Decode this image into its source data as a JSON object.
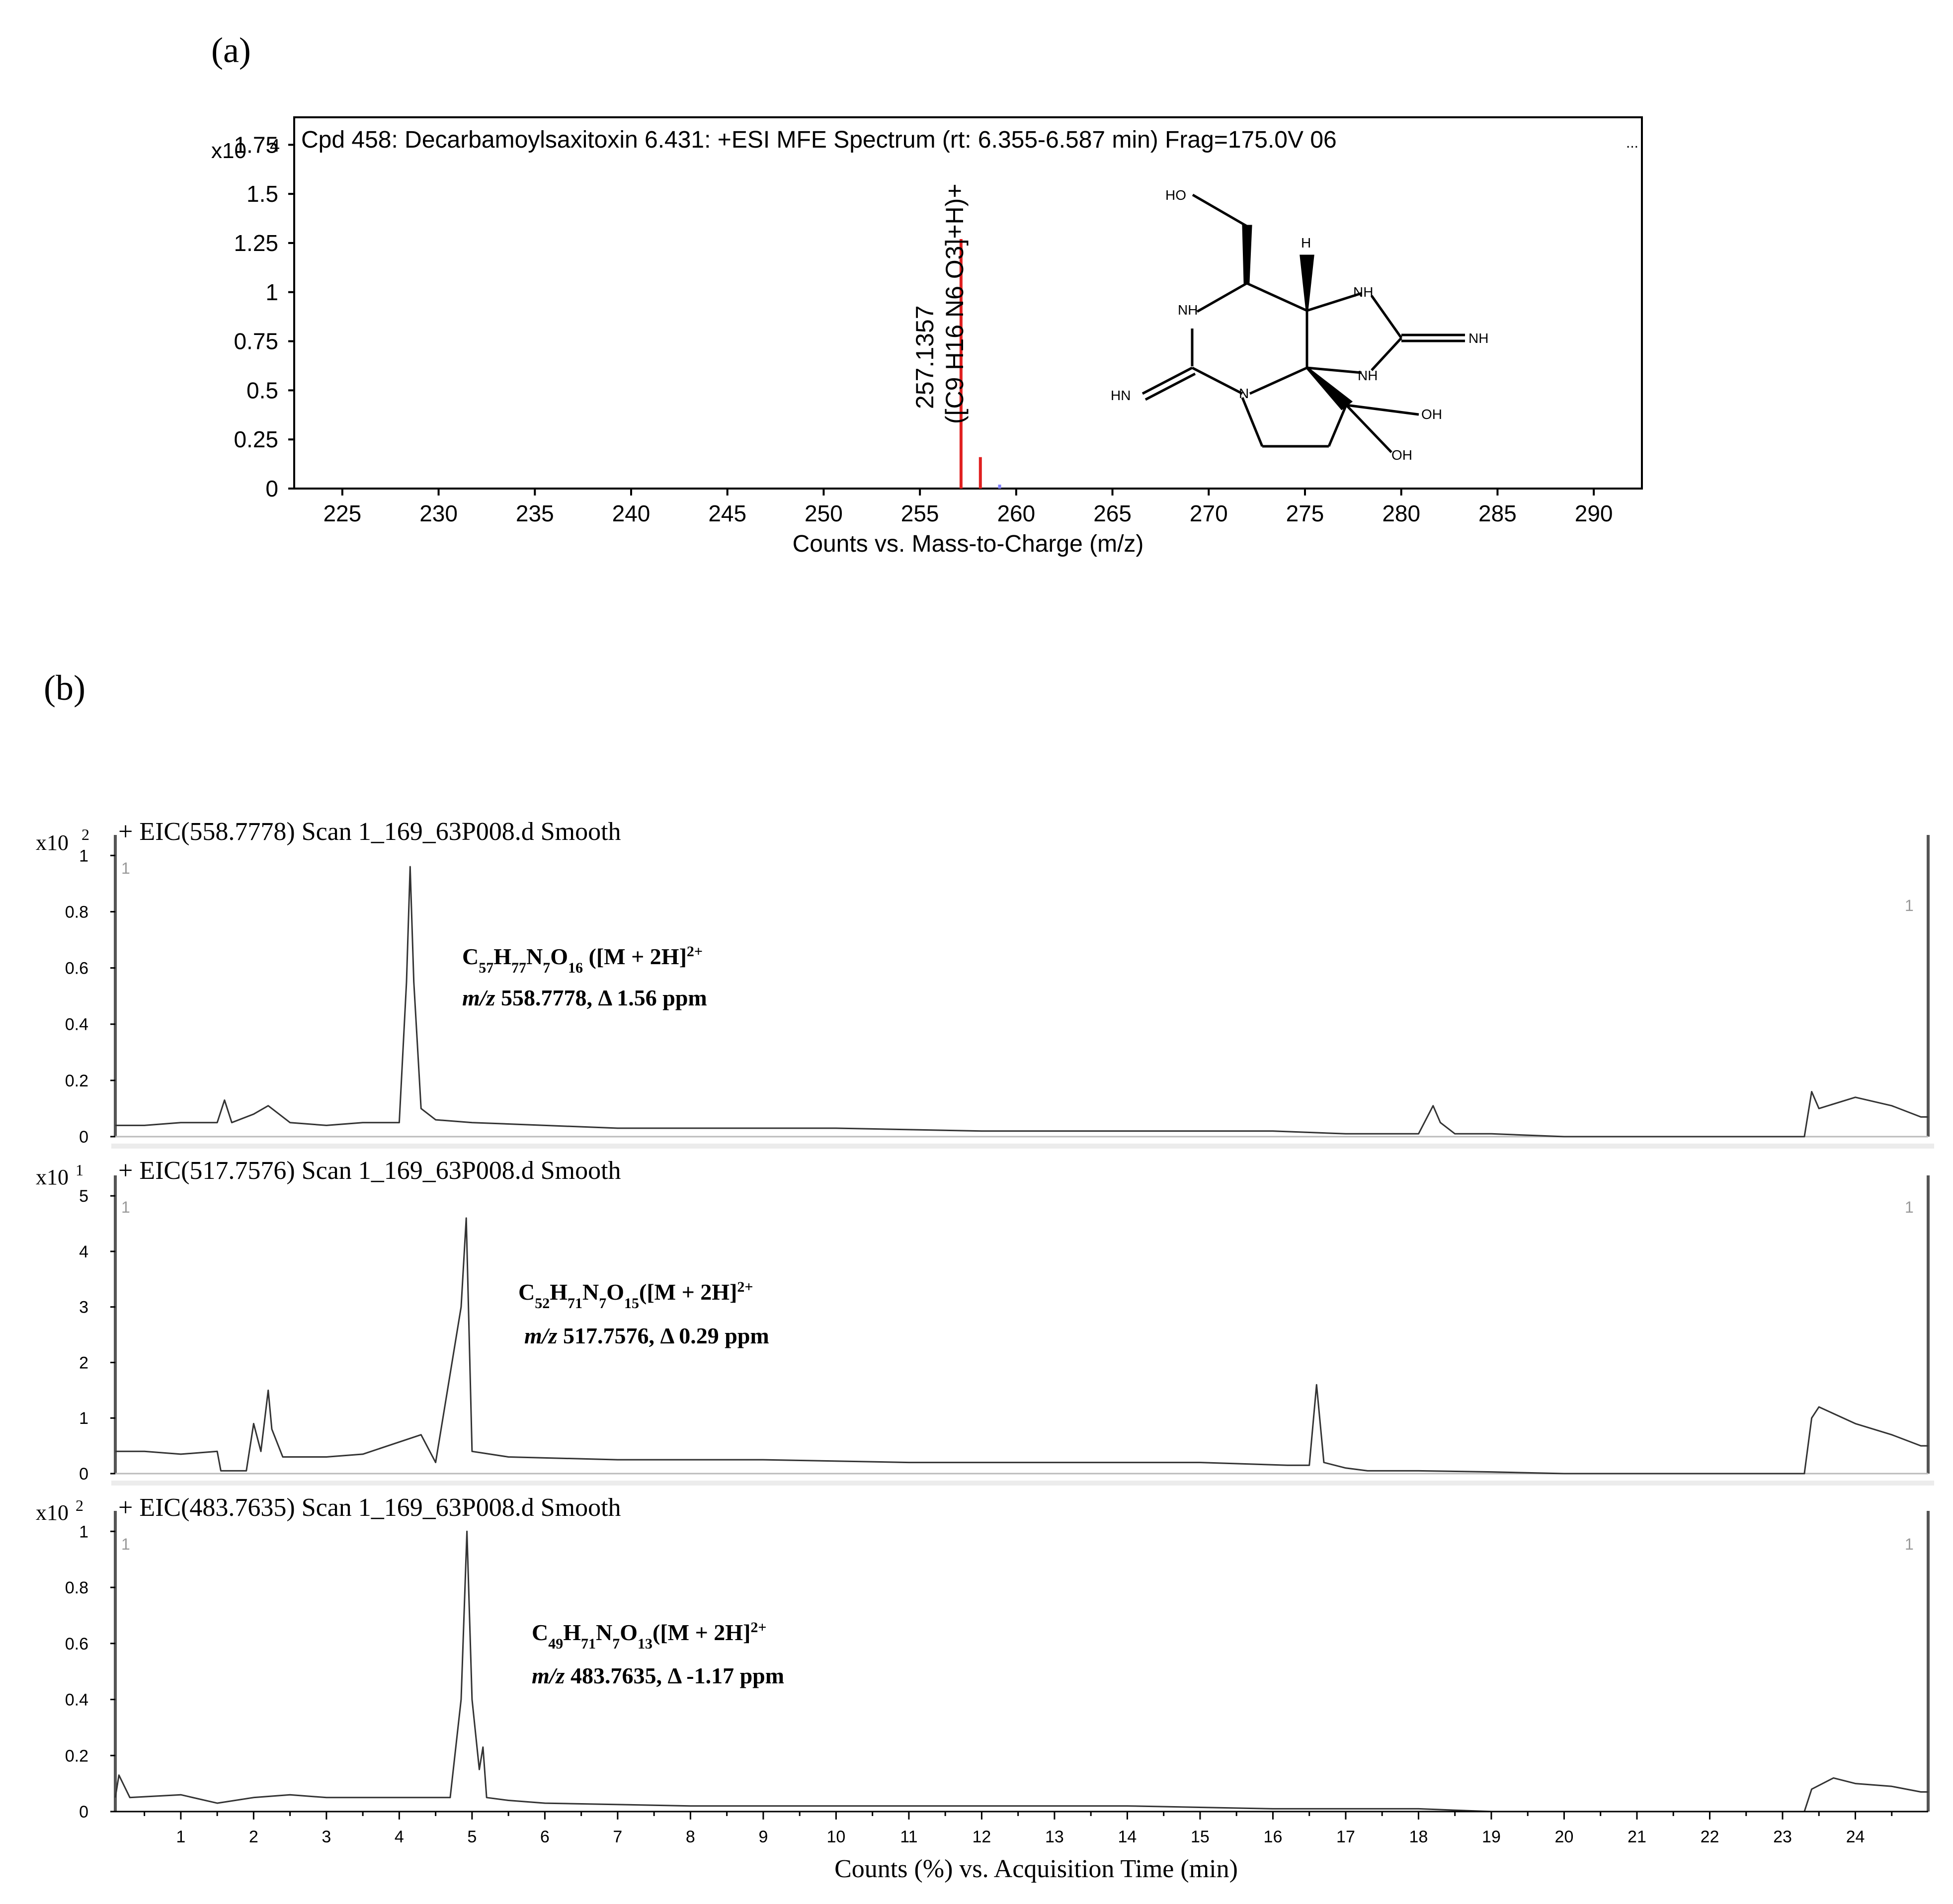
{
  "panel_a": {
    "label": "(a)",
    "header": "Cpd 458: Decarbamoylsaxitoxin 6.431: +ESI MFE Spectrum (rt: 6.355-6.587 min) Frag=175.0V 06",
    "ellipsis": "...",
    "y_multiplier": "x10",
    "y_exponent": "4",
    "xlabel": "Counts vs. Mass-to-Charge (m/z)",
    "peak_label_mz": "257.1357",
    "peak_label_formula": "([C9 H16 N6 O3]+H)+",
    "structure_labels": {
      "ho": "HO",
      "h": "H",
      "nh_left": "NH",
      "nh_top": "NH",
      "nh_imine": "NH",
      "nh_bottom": "NH",
      "hn": "HN",
      "n": "N",
      "oh1": "OH",
      "oh2": "OH"
    }
  },
  "panel_b": {
    "label": "(b)",
    "xlabel": "Counts (%) vs. Acquisition Time (min)",
    "tracks": [
      {
        "title": "+ EIC(558.7778) Scan 1_169_63P008.d  Smooth",
        "multiplier": "x10",
        "exponent": "2",
        "marker_left": "1",
        "marker_right": "1",
        "formula": {
          "c": "C",
          "cs": "57",
          "h": "H",
          "hs": "77",
          "n": "N",
          "ns": "7",
          "o": "O",
          "os": "16",
          "tail": " ([M + 2H]",
          "charge": "2+"
        },
        "mz": {
          "prefix": "m/z",
          "text": " 558.7778, Δ 1.56 ppm"
        }
      },
      {
        "title": "+ EIC(517.7576) Scan 1_169_63P008.d  Smooth",
        "multiplier": "x10",
        "exponent": "1",
        "marker_left": "1",
        "marker_right": "1",
        "formula": {
          "c": "C",
          "cs": "52",
          "h": "H",
          "hs": "71",
          "n": "N",
          "ns": "7",
          "o": "O",
          "os": "15",
          "tail": "([M + 2H]",
          "charge": "2+"
        },
        "mz": {
          "prefix": "m/z",
          "text": " 517.7576, Δ 0.29 ppm"
        }
      },
      {
        "title": "+ EIC(483.7635) Scan 1_169_63P008.d  Smooth",
        "multiplier": "x10",
        "exponent": "2",
        "marker_left": "1",
        "marker_right": "1",
        "formula": {
          "c": "C",
          "cs": "49",
          "h": "H",
          "hs": "71",
          "n": "N",
          "ns": "7",
          "o": "O",
          "os": "13",
          "tail": "([M + 2H]",
          "charge": "2+"
        },
        "mz": {
          "prefix": "m/z",
          "text": " 483.7635, Δ -1.17 ppm"
        }
      }
    ]
  },
  "chart_data": [
    {
      "type": "bar",
      "title": "Cpd 458: Decarbamoylsaxitoxin 6.431: +ESI MFE Spectrum (rt: 6.355-6.587 min) Frag=175.0V 06",
      "xlabel": "Counts vs. Mass-to-Charge (m/z)",
      "ylabel": "",
      "xlim": [
        222.5,
        292.5
      ],
      "ylim": [
        0,
        1.89
      ],
      "x_ticks": [
        225,
        230,
        235,
        240,
        245,
        250,
        255,
        260,
        265,
        270,
        275,
        280,
        285,
        290
      ],
      "y_ticks": [
        0,
        0.25,
        0.5,
        0.75,
        1,
        1.25,
        1.5,
        1.75
      ],
      "y_tick_labels": [
        "0",
        "0.25",
        "0.5",
        "0.75",
        "1",
        "1.25",
        "1.5",
        "1.75"
      ],
      "peaks": [
        {
          "mz": 257.1357,
          "intensity": 1.27,
          "color": "#e02020"
        },
        {
          "mz": 258.14,
          "intensity": 0.16,
          "color": "#e02020"
        },
        {
          "mz": 259.14,
          "intensity": 0.02,
          "color": "#8080ff"
        }
      ]
    },
    {
      "type": "line",
      "title": "+ EIC(558.7778) Scan 1_169_63P008.d  Smooth",
      "xlabel": "Counts (%) vs. Acquisition Time (min)",
      "xlim": [
        0.1,
        25.0
      ],
      "ylim": [
        0,
        1.02
      ],
      "y_ticks": [
        0,
        0.2,
        0.4,
        0.6,
        0.8,
        1
      ],
      "y_tick_labels": [
        "0",
        "0.2",
        "0.4",
        "0.6",
        "0.8",
        "1"
      ],
      "x": [
        0.1,
        0.5,
        1.0,
        1.5,
        1.6,
        1.7,
        2.0,
        2.2,
        2.5,
        3.0,
        3.5,
        4.0,
        4.1,
        4.15,
        4.2,
        4.3,
        4.5,
        5.0,
        6.0,
        7.0,
        8.0,
        9.0,
        10.0,
        12.0,
        14.0,
        16.0,
        17.0,
        18.0,
        18.2,
        18.3,
        18.5,
        19.0,
        20.0,
        23.3,
        23.4,
        23.5,
        24.0,
        24.5,
        24.9,
        25.0
      ],
      "y": [
        0.04,
        0.04,
        0.05,
        0.05,
        0.13,
        0.05,
        0.08,
        0.11,
        0.05,
        0.04,
        0.05,
        0.05,
        0.55,
        0.96,
        0.55,
        0.1,
        0.06,
        0.05,
        0.04,
        0.03,
        0.03,
        0.03,
        0.03,
        0.02,
        0.02,
        0.02,
        0.01,
        0.01,
        0.11,
        0.05,
        0.01,
        0.01,
        0.0,
        0.0,
        0.16,
        0.1,
        0.14,
        0.11,
        0.07,
        0.07
      ]
    },
    {
      "type": "line",
      "title": "+ EIC(517.7576) Scan 1_169_63P008.d  Smooth",
      "xlabel": "Counts (%) vs. Acquisition Time (min)",
      "xlim": [
        0.1,
        25.0
      ],
      "ylim": [
        0,
        5.1
      ],
      "y_ticks": [
        0,
        1,
        2,
        3,
        4,
        5
      ],
      "y_tick_labels": [
        "0",
        "1",
        "2",
        "3",
        "4",
        "5"
      ],
      "x": [
        0.1,
        0.5,
        1.0,
        1.5,
        1.55,
        1.9,
        2.0,
        2.1,
        2.2,
        2.25,
        2.4,
        3.0,
        3.5,
        4.3,
        4.5,
        4.85,
        4.92,
        5.0,
        5.5,
        7.0,
        9.0,
        11.0,
        13.0,
        15.0,
        16.2,
        16.5,
        16.6,
        16.7,
        17.0,
        17.3,
        18.0,
        19.0,
        20.0,
        23.3,
        23.4,
        23.5,
        24.0,
        24.5,
        24.9,
        25.0
      ],
      "y": [
        0.4,
        0.4,
        0.35,
        0.4,
        0.05,
        0.05,
        0.9,
        0.4,
        1.5,
        0.8,
        0.3,
        0.3,
        0.35,
        0.7,
        0.2,
        3.0,
        4.6,
        0.4,
        0.3,
        0.25,
        0.25,
        0.2,
        0.2,
        0.2,
        0.15,
        0.15,
        1.6,
        0.2,
        0.1,
        0.05,
        0.05,
        0.03,
        0.0,
        0.0,
        1.0,
        1.2,
        0.9,
        0.7,
        0.5,
        0.5
      ]
    },
    {
      "type": "line",
      "title": "+ EIC(483.7635) Scan 1_169_63P008.d  Smooth",
      "xlabel": "Counts (%) vs. Acquisition Time (min)",
      "xlim": [
        0.1,
        25.0
      ],
      "ylim": [
        0,
        1.02
      ],
      "x_ticks": [
        1,
        2,
        3,
        4,
        5,
        6,
        7,
        8,
        9,
        10,
        11,
        12,
        13,
        14,
        15,
        16,
        17,
        18,
        19,
        20,
        21,
        22,
        23,
        24
      ],
      "y_ticks": [
        0,
        0.2,
        0.4,
        0.6,
        0.8,
        1
      ],
      "y_tick_labels": [
        "0",
        "0.2",
        "0.4",
        "0.6",
        "0.8",
        "1"
      ],
      "x": [
        0.1,
        0.15,
        0.3,
        1.0,
        1.5,
        2.0,
        2.5,
        3.0,
        4.0,
        4.7,
        4.85,
        4.93,
        5.0,
        5.1,
        5.15,
        5.2,
        5.5,
        6.0,
        8.0,
        10.0,
        12.0,
        14.0,
        16.0,
        17.0,
        18.0,
        19.0,
        20.0,
        23.3,
        23.4,
        23.7,
        24.0,
        24.5,
        24.9,
        25.0
      ],
      "y": [
        0.05,
        0.13,
        0.05,
        0.06,
        0.03,
        0.05,
        0.06,
        0.05,
        0.05,
        0.05,
        0.4,
        1.0,
        0.4,
        0.15,
        0.23,
        0.05,
        0.04,
        0.03,
        0.02,
        0.02,
        0.02,
        0.02,
        0.01,
        0.01,
        0.01,
        0.0,
        0.0,
        0.0,
        0.08,
        0.12,
        0.1,
        0.09,
        0.07,
        0.07
      ]
    }
  ]
}
